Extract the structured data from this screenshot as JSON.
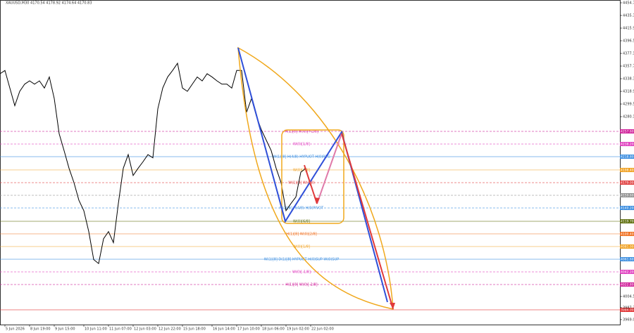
{
  "chart_data": {
    "type": "line",
    "title": "XAUUSD,M30 4170.54 4178.92 4174.64 4170.83",
    "categories": [
      null,
      "5 Jun 2026",
      null,
      null,
      null,
      null,
      "8 Jun 19:00",
      null,
      null,
      null,
      null,
      "9 Jun 15:00",
      null,
      null,
      null,
      null,
      null,
      "10 Jun 11:00",
      null,
      null,
      null,
      null,
      "11 Jun 07:00",
      null,
      null,
      null,
      null,
      "12 Jun 03:00",
      null,
      null,
      null,
      null,
      "12 Jun 22:00",
      null,
      null,
      null,
      null,
      "15 Jun 18:00",
      null,
      null,
      null,
      null,
      null,
      "16 Jun 14:00",
      null,
      null,
      null,
      null,
      "17 Jun 10:00",
      null,
      null,
      null,
      null,
      "18 Jun 06:00",
      null,
      null,
      null,
      null,
      "19 Jun 02:00",
      null,
      null,
      null,
      null,
      "22 Jun 02:00"
    ],
    "series": [
      {
        "name": "XAUUSD",
        "color": "#000000",
        "values": [
          4346,
          4351,
          4324,
          4297,
          4319,
          4330,
          4335,
          4330,
          4335,
          4324,
          4341,
          4308,
          4254,
          4228,
          4201,
          4179,
          4152,
          4136,
          4104,
          4061,
          4055,
          4093,
          4104,
          4087,
          4147,
          4201,
          4222,
          4190,
          4201,
          4211,
          4222,
          4217,
          4292,
          4324,
          4341,
          4351,
          4362,
          4324,
          4319,
          4330,
          4341,
          4335,
          4346,
          4341,
          4335,
          4330,
          4330,
          4324,
          4351,
          4351,
          4287,
          4308,
          4281,
          4260,
          4244,
          4228,
          4201,
          4179,
          4136,
          4147,
          4157,
          4195,
          4201,
          4174
        ]
      }
    ],
    "ylim": [
      3961.4,
      4459.0
    ],
    "yticks": [
      {
        "value": 4454.7,
        "label": "4454.70"
      },
      {
        "value": 4435.31,
        "label": "4435.31"
      },
      {
        "value": 4415.91,
        "label": "4415.91"
      },
      {
        "value": 4396.52,
        "label": "4396.52"
      },
      {
        "value": 4377.13,
        "label": "4377.13"
      },
      {
        "value": 4357.74,
        "label": "4357.74"
      },
      {
        "value": 4338.34,
        "label": "4338.34"
      },
      {
        "value": 4318.95,
        "label": "4318.95"
      },
      {
        "value": 4299.56,
        "label": "4299.56"
      },
      {
        "value": 4280.17,
        "label": "4280.17"
      },
      {
        "value": 4004.5,
        "label": "4004.50"
      },
      {
        "value": 3987.3,
        "label": "3987.30"
      },
      {
        "value": 3969.0,
        "label": "3969.00"
      }
    ],
    "levels": [
      {
        "price": {
          "value": 4257.6,
          "label": "4257.60"
        },
        "text": "H(1)[8] W(0)[+2/8]",
        "color": "#d0209a",
        "dash": true
      },
      {
        "price": {
          "value": 4238.2,
          "label": "4238.20"
        },
        "text": "W(0)[1/8]",
        "color": "#e040c0",
        "dash": true
      },
      {
        "price": {
          "value": 4218.8,
          "label": "4218.80"
        },
        "text": "W(1)[8] H(4/8) HYPUOT H(0)REG",
        "color": "#3c8ee0",
        "dash": false
      },
      {
        "price": {
          "value": 4198.4,
          "label": "4198.40"
        },
        "text": "W(0)[7/8]",
        "color": "#f0a020",
        "dash": false
      },
      {
        "price": {
          "value": 4179.0,
          "label": "4179.00"
        },
        "text": "W(1)[8] W(4/8)",
        "color": "#e04040",
        "dash": true
      },
      {
        "price": {
          "value": 4159.6,
          "label": "4159.60"
        },
        "text": null,
        "color": "#909090",
        "dash": true
      },
      {
        "price": {
          "value": 4140.2,
          "label": "4140.20"
        },
        "text": "H(2)[8] H(4/8) H(0)PIVOT",
        "color": "#3c8ee0",
        "dash": true
      },
      {
        "price": {
          "value": 4119.7,
          "label": "4119.70"
        },
        "text": "W(0)[6/8]",
        "color": "#607010",
        "dash": false
      },
      {
        "price": {
          "value": 4100.4,
          "label": "4100.40"
        },
        "text": "H(1)[8] W(0)[2/8]",
        "color": "#f07020",
        "dash": false
      },
      {
        "price": {
          "value": 4081.0,
          "label": "4081.00"
        },
        "text": "W(0)[1/8]",
        "color": "#f0a020",
        "dash": false
      },
      {
        "price": {
          "value": 4061.6,
          "label": "4061.60"
        },
        "text": "W(1)[8] D(1)[8] HYPUOT H(0)SUP W(0)SUP",
        "color": "#3c8ee0",
        "dash": false
      },
      {
        "price": {
          "value": 4042.2,
          "label": "4042.20"
        },
        "text": "W(0)[-1/8]",
        "color": "#e040c0",
        "dash": true
      },
      {
        "price": {
          "value": 4022.8,
          "label": "4022.80"
        },
        "text": "H(1)[8] W(0)[-2/8]",
        "color": "#d0209a",
        "dash": true
      },
      {
        "price": {
          "value": 3984.0,
          "label": "3984.00"
        },
        "text": null,
        "color": "#e03030",
        "dash": false
      }
    ]
  }
}
